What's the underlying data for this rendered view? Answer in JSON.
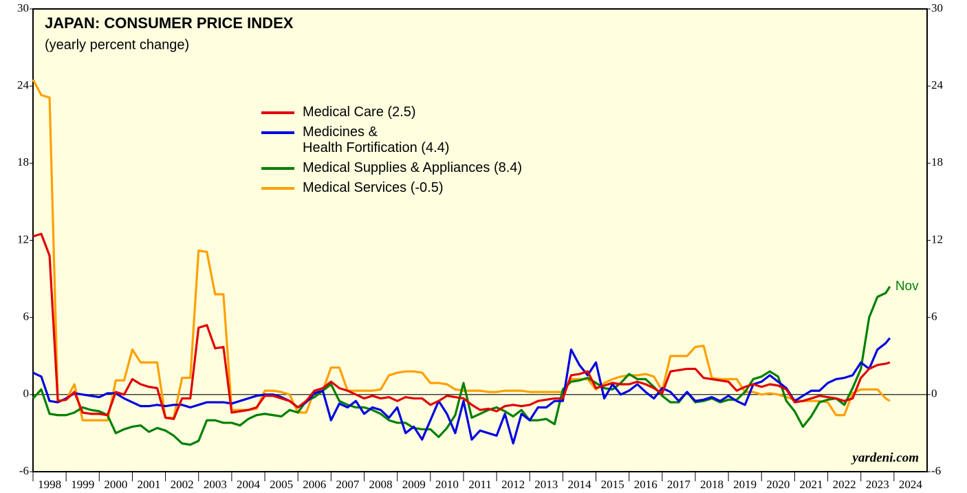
{
  "chart_data": {
    "type": "line",
    "title": "JAPAN: CONSUMER PRICE INDEX",
    "subtitle": "(yearly percent change)",
    "annotations": {
      "last_month": "Nov",
      "source": "yardeni.com"
    },
    "x": [
      1998,
      1998.25,
      1998.5,
      1998.75,
      1999,
      1999.25,
      1999.5,
      1999.75,
      2000,
      2000.25,
      2000.5,
      2000.75,
      2001,
      2001.25,
      2001.5,
      2001.75,
      2002,
      2002.25,
      2002.5,
      2002.75,
      2003,
      2003.25,
      2003.5,
      2003.75,
      2004,
      2004.25,
      2004.5,
      2004.75,
      2005,
      2005.25,
      2005.5,
      2005.75,
      2006,
      2006.25,
      2006.5,
      2006.75,
      2007,
      2007.25,
      2007.5,
      2007.75,
      2008,
      2008.25,
      2008.5,
      2008.75,
      2009,
      2009.25,
      2009.5,
      2009.75,
      2010,
      2010.25,
      2010.5,
      2010.75,
      2011,
      2011.25,
      2011.5,
      2011.75,
      2012,
      2012.25,
      2012.5,
      2012.75,
      2013,
      2013.25,
      2013.5,
      2013.75,
      2014,
      2014.25,
      2014.5,
      2014.75,
      2015,
      2015.25,
      2015.5,
      2015.75,
      2016,
      2016.25,
      2016.5,
      2016.75,
      2017,
      2017.25,
      2017.5,
      2017.75,
      2018,
      2018.25,
      2018.5,
      2018.75,
      2019,
      2019.25,
      2019.5,
      2019.75,
      2020,
      2020.25,
      2020.5,
      2020.75,
      2021,
      2021.25,
      2021.5,
      2021.75,
      2022,
      2022.25,
      2022.5,
      2022.75,
      2023,
      2023.25,
      2023.5,
      2023.75,
      2023.875
    ],
    "series": [
      {
        "name": "Medical Care (2.5)",
        "color": "#e00000",
        "values": [
          12.3,
          12.5,
          10.8,
          -0.5,
          -0.4,
          0.2,
          -1.4,
          -1.5,
          -1.5,
          -1.6,
          0.2,
          0,
          1.2,
          0.8,
          0.6,
          0.5,
          -1.8,
          -1.9,
          -0.3,
          -0.3,
          5.2,
          5.4,
          3.6,
          3.7,
          -1.4,
          -1.3,
          -1.2,
          -1.0,
          -0.1,
          -0.1,
          -0.3,
          -0.5,
          -1.0,
          -0.5,
          0.3,
          0.5,
          1.0,
          0.5,
          0.3,
          0,
          -0.3,
          -0.1,
          -0.3,
          -0.2,
          -0.5,
          -0.2,
          -0.3,
          -0.3,
          -0.8,
          -0.5,
          -0.1,
          -0.2,
          -0.3,
          -0.8,
          -1.2,
          -1.1,
          -1.3,
          -0.9,
          -0.8,
          -0.9,
          -0.8,
          -0.5,
          -0.4,
          -0.3,
          -0.3,
          1.5,
          1.6,
          1.8,
          0.5,
          0.7,
          0.9,
          0.8,
          0.8,
          1.0,
          0.8,
          0.5,
          0.1,
          1.8,
          1.9,
          2.0,
          2.0,
          1.3,
          1.2,
          1.1,
          1.0,
          0.3,
          0.6,
          0.8,
          0.6,
          0.8,
          0.7,
          0.4,
          -0.6,
          -0.5,
          -0.3,
          -0.1,
          -0.2,
          -0.3,
          -0.5,
          -0.3,
          1.3,
          2.0,
          2.3,
          2.4,
          2.5
        ]
      },
      {
        "name": "Medicines &\nHealth Fortification (4.4)",
        "color": "#0000e0",
        "values": [
          1.7,
          1.4,
          -0.5,
          -0.6,
          -0.3,
          0.1,
          0,
          -0.1,
          -0.2,
          0.1,
          0.1,
          -0.3,
          -0.6,
          -0.9,
          -0.9,
          -0.8,
          -0.9,
          -0.8,
          -0.8,
          -1.0,
          -0.8,
          -0.6,
          -0.6,
          -0.6,
          -0.7,
          -0.5,
          -0.3,
          -0.1,
          0,
          0,
          -0.2,
          -0.5,
          -1.0,
          -0.6,
          0.1,
          0.3,
          -2.0,
          -0.7,
          -1.0,
          -0.5,
          -1.5,
          -1.0,
          -1.2,
          -1.8,
          -1.0,
          -3.0,
          -2.5,
          -3.5,
          -2.0,
          -0.5,
          -1.5,
          -3.0,
          -0.5,
          -3.5,
          -2.8,
          -3.0,
          -3.2,
          -1.5,
          -3.8,
          -1.5,
          -2.0,
          -1.0,
          -1.0,
          -0.5,
          -0.5,
          3.5,
          2.3,
          1.5,
          2.5,
          -0.3,
          0.8,
          0,
          0.3,
          0.8,
          0.2,
          -0.3,
          0.5,
          0.2,
          -0.5,
          0.2,
          -0.5,
          -0.4,
          -0.2,
          -0.5,
          -0.1,
          -0.5,
          -0.8,
          0.8,
          1.0,
          1.5,
          1.0,
          0.5,
          -0.5,
          -0.1,
          0.3,
          0.3,
          0.9,
          1.2,
          1.3,
          1.5,
          2.5,
          2.0,
          3.5,
          4.0,
          4.4
        ]
      },
      {
        "name": "Medical Supplies & Appliances (8.4)",
        "color": "#008000",
        "values": [
          -0.3,
          0.4,
          -1.5,
          -1.6,
          -1.6,
          -1.4,
          -1.0,
          -1.2,
          -1.3,
          -1.6,
          -3.0,
          -2.7,
          -2.5,
          -2.4,
          -2.9,
          -2.6,
          -2.8,
          -3.2,
          -3.8,
          -3.9,
          -3.6,
          -2.0,
          -2.0,
          -2.2,
          -2.2,
          -2.4,
          -1.9,
          -1.6,
          -1.5,
          -1.6,
          -1.7,
          -1.2,
          -1.4,
          -0.5,
          -0.2,
          0.3,
          0.8,
          -0.5,
          -0.8,
          -1.0,
          -1.0,
          -1.2,
          -1.5,
          -2.0,
          -2.2,
          -2.2,
          -2.6,
          -2.7,
          -2.7,
          -3.3,
          -2.6,
          -1.6,
          0.9,
          -1.8,
          -1.5,
          -1.2,
          -1.0,
          -1.3,
          -1.7,
          -1.2,
          -2.0,
          -2.0,
          -1.9,
          -2.3,
          0.4,
          1.0,
          1.1,
          1.3,
          0.9,
          0.5,
          0.4,
          0.9,
          1.6,
          1.2,
          1.2,
          0.6,
          -0.1,
          -0.6,
          -0.6,
          0.2,
          -0.6,
          -0.5,
          -0.3,
          -0.6,
          -0.4,
          -0.4,
          0.2,
          1.2,
          1.4,
          1.8,
          1.4,
          -0.5,
          -1.3,
          -2.5,
          -1.7,
          -0.6,
          -0.4,
          -0.3,
          -0.8,
          0.5,
          2.0,
          6.0,
          7.6,
          7.9,
          8.4
        ]
      },
      {
        "name": "Medical Services (-0.5)",
        "color": "#ffa000",
        "values": [
          24.5,
          23.3,
          23.1,
          -0.5,
          -0.4,
          0.8,
          -2.0,
          -2.0,
          -2.0,
          -2.0,
          1.1,
          1.1,
          3.5,
          2.5,
          2.5,
          2.5,
          -1.8,
          -1.8,
          1.3,
          1.3,
          11.2,
          11.1,
          7.8,
          7.8,
          -1.2,
          -1.2,
          -1.2,
          -1.1,
          0.3,
          0.3,
          0.2,
          0,
          -1.4,
          -1.4,
          0.3,
          0.3,
          2.1,
          2.1,
          0.3,
          0.3,
          0.3,
          0.3,
          0.4,
          1.5,
          1.7,
          1.8,
          1.8,
          1.7,
          0.9,
          0.9,
          0.8,
          0.4,
          0.3,
          0.3,
          0.3,
          0.2,
          0.2,
          0.3,
          0.3,
          0.3,
          0.2,
          0.2,
          0.2,
          0.2,
          0.2,
          1.2,
          1.2,
          1.2,
          0.4,
          0.9,
          1.2,
          1.4,
          1.5,
          1.5,
          1.6,
          1.4,
          0.3,
          3.0,
          3.0,
          3.0,
          3.7,
          3.8,
          1.3,
          1.2,
          1.2,
          1.2,
          0.2,
          0.2,
          0,
          0.1,
          0,
          -0.2,
          -0.4,
          -0.5,
          -0.5,
          -0.5,
          -0.6,
          -1.6,
          -1.6,
          0.1,
          0.4,
          0.4,
          0.4,
          -0.3,
          -0.5
        ]
      }
    ],
    "xlim": [
      1998,
      2025
    ],
    "xticks": [
      1998,
      1999,
      2000,
      2001,
      2002,
      2003,
      2004,
      2005,
      2006,
      2007,
      2008,
      2009,
      2010,
      2011,
      2012,
      2013,
      2014,
      2015,
      2016,
      2017,
      2018,
      2019,
      2020,
      2021,
      2022,
      2023,
      2024
    ],
    "ylim": [
      -6,
      30
    ],
    "yticks": [
      -6,
      0,
      6,
      12,
      18,
      24,
      30
    ],
    "y2lim": [
      -6,
      30
    ],
    "y2ticks": [
      -6,
      0,
      6,
      12,
      18,
      24,
      30
    ]
  }
}
